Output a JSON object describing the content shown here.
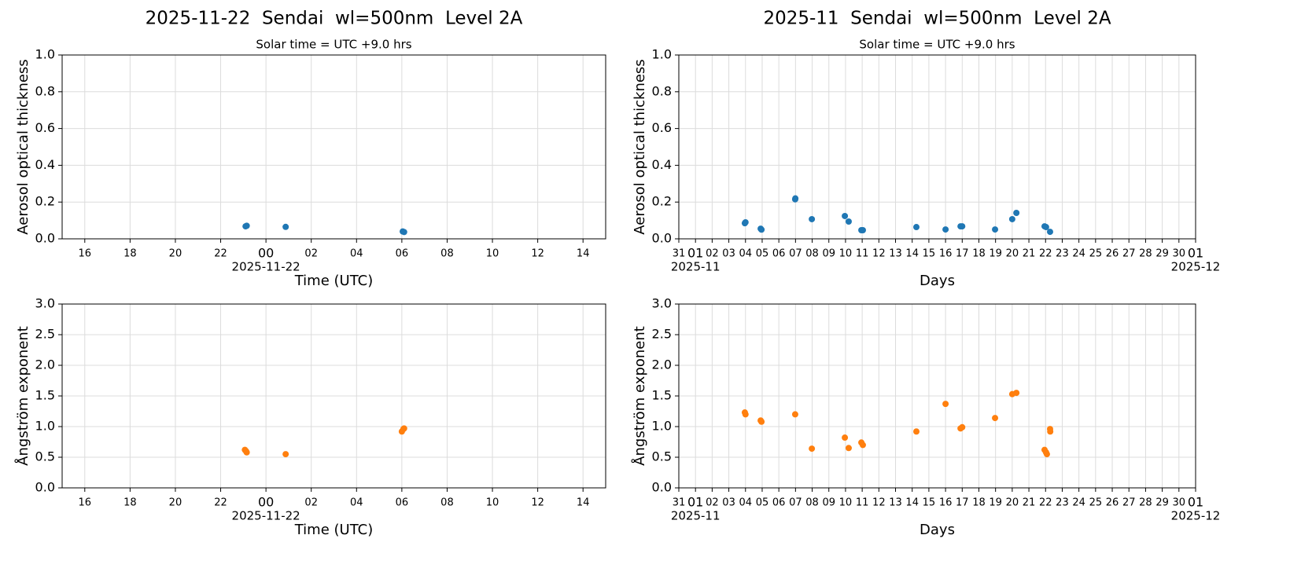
{
  "chart_data": [
    {
      "type": "scatter",
      "title": "2025-11-22  Sendai  wl=500nm  Level 2A",
      "subtitle": "Solar time = UTC +9.0 hrs",
      "xlabel": "Time (UTC)",
      "ylabel": "Aerosol optical thickness",
      "color": "#1f77b4",
      "grid": true,
      "x": [
        -0.9,
        -0.85,
        0.87,
        6.04,
        6.1
      ],
      "values": [
        0.068,
        0.071,
        0.065,
        0.04,
        0.037
      ],
      "xlim": [
        -9,
        15
      ],
      "ylim": [
        0,
        1
      ],
      "xticks": [
        {
          "value": -8,
          "label": "16"
        },
        {
          "value": -6,
          "label": "18"
        },
        {
          "value": -4,
          "label": "20"
        },
        {
          "value": -2,
          "label": "22"
        },
        {
          "value": 0,
          "label": "00",
          "sublabel": "2025-11-22"
        },
        {
          "value": 2,
          "label": "02"
        },
        {
          "value": 4,
          "label": "04"
        },
        {
          "value": 6,
          "label": "06"
        },
        {
          "value": 8,
          "label": "08"
        },
        10,
        12,
        14
      ],
      "yticks": [
        {
          "value": 0,
          "label": "0.0"
        },
        0.2,
        0.4,
        0.6,
        0.8,
        {
          "value": 1,
          "label": "1.0"
        }
      ]
    },
    {
      "type": "scatter",
      "title": "2025-11  Sendai  wl=500nm  Level 2A",
      "subtitle": "Solar time = UTC +9.0 hrs",
      "xlabel": "Days",
      "ylabel": "Aerosol optical thickness",
      "color": "#1f77b4",
      "grid": true,
      "x": [
        3.96,
        4.0,
        4.91,
        4.96,
        6.98,
        6.99,
        7.98,
        9.96,
        10.19,
        10.95,
        11.04,
        14.25,
        16.0,
        16.9,
        17.0,
        18.97,
        20.0,
        20.25,
        21.94,
        22.03,
        22.27
      ],
      "values": [
        0.085,
        0.09,
        0.055,
        0.05,
        0.215,
        0.22,
        0.107,
        0.124,
        0.094,
        0.047,
        0.047,
        0.064,
        0.051,
        0.068,
        0.068,
        0.051,
        0.107,
        0.141,
        0.068,
        0.064,
        0.038
      ],
      "xlim": [
        0,
        31
      ],
      "ylim": [
        0,
        1
      ],
      "xticks": [
        {
          "value": 0,
          "label": "31"
        },
        {
          "value": 1,
          "label": "01",
          "sublabel": "2025-11"
        },
        {
          "value": 2,
          "label": "02"
        },
        {
          "value": 3,
          "label": "03"
        },
        {
          "value": 4,
          "label": "04"
        },
        {
          "value": 5,
          "label": "05"
        },
        {
          "value": 6,
          "label": "06"
        },
        {
          "value": 7,
          "label": "07"
        },
        {
          "value": 8,
          "label": "08"
        },
        {
          "value": 9,
          "label": "09"
        },
        10,
        11,
        12,
        13,
        14,
        15,
        16,
        17,
        18,
        19,
        20,
        21,
        22,
        23,
        24,
        25,
        26,
        27,
        28,
        29,
        30,
        {
          "value": 31,
          "label": "01",
          "sublabel": "2025-12"
        }
      ],
      "yticks": [
        {
          "value": 0,
          "label": "0.0"
        },
        0.2,
        0.4,
        0.6,
        0.8,
        {
          "value": 1,
          "label": "1.0"
        }
      ]
    },
    {
      "type": "scatter",
      "xlabel": "Time (UTC)",
      "ylabel": "Ångström exponent",
      "color": "#ff7f0e",
      "grid": true,
      "x": [
        -0.93,
        -0.88,
        -0.85,
        0.87,
        6.0,
        6.07,
        6.1
      ],
      "values": [
        0.62,
        0.6,
        0.58,
        0.55,
        0.92,
        0.96,
        0.97
      ],
      "xlim": [
        -9,
        15
      ],
      "ylim": [
        0,
        3
      ],
      "xticks": [
        {
          "value": -8,
          "label": "16"
        },
        {
          "value": -6,
          "label": "18"
        },
        {
          "value": -4,
          "label": "20"
        },
        {
          "value": -2,
          "label": "22"
        },
        {
          "value": 0,
          "label": "00",
          "sublabel": "2025-11-22"
        },
        {
          "value": 2,
          "label": "02"
        },
        {
          "value": 4,
          "label": "04"
        },
        {
          "value": 6,
          "label": "06"
        },
        {
          "value": 8,
          "label": "08"
        },
        10,
        12,
        14
      ],
      "yticks": [
        {
          "value": 0,
          "label": "0.0"
        },
        0.5,
        {
          "value": 1,
          "label": "1.0"
        },
        1.5,
        {
          "value": 2,
          "label": "2.0"
        },
        2.5,
        {
          "value": 3,
          "label": "3.0"
        }
      ]
    },
    {
      "type": "scatter",
      "xlabel": "Days",
      "ylabel": "Ångström exponent",
      "color": "#ff7f0e",
      "grid": true,
      "x": [
        3.96,
        4.0,
        4.91,
        4.96,
        6.98,
        7.98,
        9.96,
        10.19,
        10.95,
        11.04,
        14.25,
        16.0,
        16.9,
        17.0,
        18.97,
        20.0,
        20.25,
        21.94,
        22.03,
        22.08,
        22.27,
        22.28
      ],
      "values": [
        1.23,
        1.2,
        1.1,
        1.08,
        1.2,
        0.64,
        0.82,
        0.65,
        0.74,
        0.7,
        0.92,
        1.37,
        0.97,
        0.99,
        1.14,
        1.53,
        1.55,
        0.62,
        0.58,
        0.55,
        0.96,
        0.92
      ],
      "xlim": [
        0,
        31
      ],
      "ylim": [
        0,
        3
      ],
      "xticks": [
        {
          "value": 0,
          "label": "31"
        },
        {
          "value": 1,
          "label": "01",
          "sublabel": "2025-11"
        },
        {
          "value": 2,
          "label": "02"
        },
        {
          "value": 3,
          "label": "03"
        },
        {
          "value": 4,
          "label": "04"
        },
        {
          "value": 5,
          "label": "05"
        },
        {
          "value": 6,
          "label": "06"
        },
        {
          "value": 7,
          "label": "07"
        },
        {
          "value": 8,
          "label": "08"
        },
        {
          "value": 9,
          "label": "09"
        },
        10,
        11,
        12,
        13,
        14,
        15,
        16,
        17,
        18,
        19,
        20,
        21,
        22,
        23,
        24,
        25,
        26,
        27,
        28,
        29,
        30,
        {
          "value": 31,
          "label": "01",
          "sublabel": "2025-12"
        }
      ],
      "yticks": [
        {
          "value": 0,
          "label": "0.0"
        },
        0.5,
        {
          "value": 1,
          "label": "1.0"
        },
        1.5,
        {
          "value": 2,
          "label": "2.0"
        },
        2.5,
        {
          "value": 3,
          "label": "3.0"
        }
      ]
    }
  ]
}
